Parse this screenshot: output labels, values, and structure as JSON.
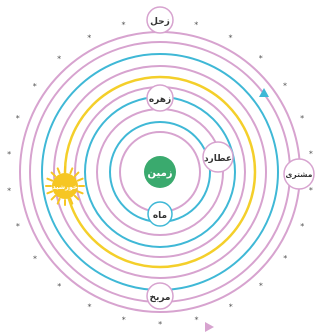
{
  "diagram": {
    "center_body": {
      "label": "زمین",
      "icon": "earth-disc-icon"
    },
    "bodies": [
      {
        "id": "moon",
        "label": "ماه",
        "orbit_color": "#d7a3cf"
      },
      {
        "id": "mercury",
        "label": "عطارد",
        "orbit_color": "#3fb8d6"
      },
      {
        "id": "venus",
        "label": "زهره",
        "orbit_color": "#d7a3cf"
      },
      {
        "id": "sun",
        "label": "خورشید",
        "orbit_color": "#f4cf2a",
        "icon": "sun-icon"
      },
      {
        "id": "mars",
        "label": "مریخ",
        "orbit_color": "#d7a3cf"
      },
      {
        "id": "jupiter",
        "label": "مشتری",
        "orbit_color": "#3fb8d6"
      },
      {
        "id": "saturn",
        "label": "زحل",
        "orbit_color": "#d7a3cf"
      }
    ],
    "fixed_stars_symbol": "*",
    "colors": {
      "earth": "#3aaa6e",
      "sun": "#f6c623",
      "pink": "#d7a3cf",
      "cyan": "#3fb8d6",
      "yellow": "#f4cf2a"
    },
    "arrow_icons": [
      "arrow-up-icon",
      "arrow-right-icon"
    ]
  }
}
